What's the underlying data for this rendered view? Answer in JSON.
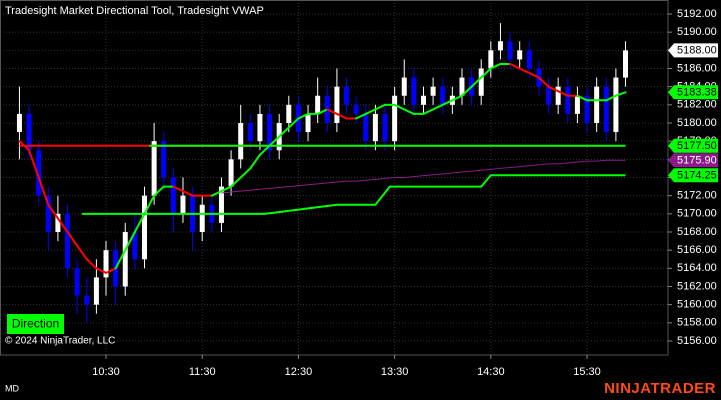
{
  "chart_data": {
    "type": "candlestick",
    "title": "Tradesight Market Directional Tool, Tradesight VWAP",
    "copyright": "© 2024 NinjaTrader, LLC",
    "indicator_label": "Direction",
    "instrument_label": "MD",
    "logo": "NINJATRADER",
    "x": [
      9.6,
      9.7,
      9.8,
      9.9,
      10.0,
      10.1,
      10.2,
      10.3,
      10.4,
      10.5,
      10.6,
      10.7,
      10.8,
      10.9,
      11.0,
      11.1,
      11.2,
      11.3,
      11.4,
      11.5,
      11.6,
      11.7,
      11.8,
      11.9,
      12.0,
      12.1,
      12.2,
      12.3,
      12.4,
      12.5,
      12.6,
      12.7,
      12.8,
      12.9,
      13.0,
      13.1,
      13.2,
      13.3,
      13.4,
      13.5,
      13.6,
      13.7,
      13.8,
      13.9,
      14.0,
      14.1,
      14.2,
      14.3,
      14.4,
      14.5,
      14.6,
      14.7,
      14.8,
      14.9,
      15.0,
      15.1,
      15.2,
      15.3,
      15.4,
      15.5,
      15.6,
      15.7,
      15.8,
      15.9
    ],
    "open": [
      5179,
      5181,
      5177,
      5172,
      5168,
      5170,
      5164,
      5161,
      5160,
      5163,
      5166,
      5162,
      5168,
      5165,
      5172,
      5178,
      5174,
      5170,
      5172,
      5168,
      5171,
      5169,
      5173,
      5176,
      5180,
      5178,
      5181,
      5177,
      5180,
      5182,
      5179,
      5181,
      5183,
      5180,
      5184,
      5182,
      5181,
      5178,
      5181,
      5178,
      5183,
      5185,
      5182,
      5183,
      5184,
      5182,
      5183,
      5185,
      5183,
      5186,
      5188,
      5189,
      5187,
      5188,
      5186,
      5184,
      5182,
      5184,
      5181,
      5183,
      5180,
      5184,
      5179,
      5185
    ],
    "high": [
      5184,
      5182,
      5178,
      5173,
      5172,
      5171,
      5165,
      5163,
      5165,
      5167,
      5167,
      5169,
      5170,
      5173,
      5180,
      5179,
      5175,
      5174,
      5173,
      5172,
      5172,
      5174,
      5177,
      5182,
      5181,
      5182,
      5182,
      5181,
      5183,
      5183,
      5182,
      5185,
      5184,
      5186,
      5185,
      5183,
      5182,
      5182,
      5182,
      5184,
      5187,
      5186,
      5184,
      5185,
      5185,
      5184,
      5186,
      5186,
      5187,
      5189,
      5191,
      5190,
      5189,
      5189,
      5187,
      5185,
      5185,
      5185,
      5184,
      5184,
      5185,
      5185,
      5186,
      5189
    ],
    "low": [
      5176,
      5176,
      5171,
      5166,
      5167,
      5163,
      5159,
      5158,
      5159,
      5161,
      5160,
      5161,
      5164,
      5164,
      5171,
      5173,
      5168,
      5169,
      5166,
      5167,
      5168,
      5168,
      5172,
      5175,
      5177,
      5177,
      5176,
      5176,
      5179,
      5178,
      5178,
      5180,
      5179,
      5179,
      5181,
      5180,
      5177,
      5177,
      5177,
      5177,
      5182,
      5181,
      5181,
      5182,
      5181,
      5181,
      5182,
      5182,
      5182,
      5185,
      5187,
      5186,
      5186,
      5185,
      5183,
      5181,
      5181,
      5180,
      5180,
      5179,
      5179,
      5178,
      5178,
      5184
    ],
    "close": [
      5181,
      5177,
      5172,
      5168,
      5170,
      5164,
      5161,
      5160,
      5163,
      5166,
      5162,
      5168,
      5165,
      5172,
      5178,
      5174,
      5170,
      5172,
      5168,
      5171,
      5169,
      5173,
      5176,
      5180,
      5178,
      5181,
      5177,
      5180,
      5182,
      5179,
      5181,
      5183,
      5180,
      5184,
      5182,
      5181,
      5178,
      5181,
      5178,
      5183,
      5185,
      5182,
      5183,
      5184,
      5182,
      5183,
      5185,
      5183,
      5186,
      5188,
      5189,
      5187,
      5188,
      5186,
      5184,
      5182,
      5184,
      5181,
      5183,
      5180,
      5184,
      5179,
      5185,
      5188
    ],
    "up_color": "#ffffff",
    "down_color": "#0000ff",
    "lines": [
      {
        "color": "#ff0000",
        "width": 2,
        "x": [
          9.6,
          12.25
        ],
        "values": [
          5177.5,
          5177.5
        ]
      },
      {
        "color": "#00ff00",
        "width": 2,
        "x": [
          10.95,
          15.9
        ],
        "values": [
          5177.5,
          5177.5
        ]
      },
      {
        "color": "#00ff00",
        "width": 2,
        "x": [
          10.25,
          12.15,
          12.9,
          13.3,
          13.45,
          14.4,
          14.5,
          15.9
        ],
        "values": [
          5170,
          5170,
          5171,
          5171,
          5173,
          5173,
          5174.25,
          5174.25
        ]
      },
      {
        "color": "#8b1a8b",
        "width": 1,
        "values": [
          null,
          null,
          null,
          null,
          null,
          null,
          null,
          null,
          null,
          null,
          null,
          null,
          null,
          null,
          null,
          null,
          null,
          null,
          null,
          null,
          null,
          5172.3,
          5172.4,
          5172.5,
          5172.6,
          5172.7,
          5172.8,
          5172.9,
          5173,
          5173.1,
          5173.2,
          5173.3,
          5173.4,
          5173.5,
          5173.6,
          5173.6,
          5173.7,
          5173.8,
          5173.9,
          5174,
          5174,
          5174.1,
          5174.2,
          5174.3,
          5174.4,
          5174.5,
          5174.6,
          5174.7,
          5174.8,
          5174.9,
          5175,
          5175.1,
          5175.2,
          5175.3,
          5175.4,
          5175.5,
          5175.5,
          5175.6,
          5175.7,
          5175.8,
          5175.8,
          5175.9,
          5175.9,
          5175.9
        ]
      },
      {
        "width": 2,
        "values": [
          5178,
          5177,
          5174,
          5171,
          5169.5,
          5168,
          5166.5,
          5165,
          5164,
          5163.5,
          5164,
          5166,
          5168,
          5170,
          5172,
          5173,
          5173,
          5172.5,
          5172,
          5172,
          5172,
          5172.5,
          5173,
          5174,
          5175,
          5176.5,
          5177.5,
          5178.5,
          5179.5,
          5180.5,
          5181,
          5181,
          5181.5,
          5181,
          5180.5,
          5180.5,
          5181,
          5181.5,
          5182,
          5182,
          5181.5,
          5181,
          5181,
          5181.5,
          5182,
          5182.5,
          5183,
          5184,
          5185,
          5186,
          5186.5,
          5186.5,
          5186,
          5185.5,
          5185,
          5184,
          5183.5,
          5183,
          5183,
          5182.5,
          5182.5,
          5182.5,
          5183,
          5183.38
        ],
        "colors": [
          "#ff0000",
          "#ff0000",
          "#ff0000",
          "#ff0000",
          "#ff0000",
          "#ff0000",
          "#ff0000",
          "#ff0000",
          "#ff0000",
          "#ff0000",
          "#ff0000",
          "#00ff00",
          "#00ff00",
          "#00ff00",
          "#00ff00",
          "#00ff00",
          "#00ff00",
          "#ff0000",
          "#ff0000",
          "#ff0000",
          "#ff0000",
          "#00ff00",
          "#00ff00",
          "#00ff00",
          "#00ff00",
          "#00ff00",
          "#00ff00",
          "#00ff00",
          "#00ff00",
          "#00ff00",
          "#00ff00",
          "#00ff00",
          "#00ff00",
          "#ff0000",
          "#ff0000",
          "#ff0000",
          "#00ff00",
          "#00ff00",
          "#00ff00",
          "#00ff00",
          "#00ff00",
          "#00ff00",
          "#00ff00",
          "#00ff00",
          "#00ff00",
          "#00ff00",
          "#00ff00",
          "#00ff00",
          "#00ff00",
          "#00ff00",
          "#00ff00",
          "#00ff00",
          "#ff0000",
          "#ff0000",
          "#ff0000",
          "#ff0000",
          "#ff0000",
          "#ff0000",
          "#ff0000",
          "#00ff00",
          "#00ff00",
          "#00ff00",
          "#00ff00",
          "#00ff00"
        ]
      }
    ],
    "markers": [
      {
        "value": 5188,
        "label": "5188.00",
        "bg": "#ffffff",
        "fg": "#000000"
      },
      {
        "value": 5183.38,
        "label": "5183.38",
        "bg": "#00ff00",
        "fg": "#000000"
      },
      {
        "value": 5177.5,
        "label": "5177.50",
        "bg": "#00ff00",
        "fg": "#000000"
      },
      {
        "value": 5175.9,
        "label": "5175.90",
        "bg": "#8b1a8b",
        "fg": "#ffffff"
      },
      {
        "value": 5174.25,
        "label": "5174.25",
        "bg": "#00ff00",
        "fg": "#000000"
      }
    ],
    "xlim": [
      9.45,
      16.3
    ],
    "xticks": [
      {
        "value": 10.5,
        "label": "10:30"
      },
      {
        "value": 11.5,
        "label": "11:30"
      },
      {
        "value": 12.5,
        "label": "12:30"
      },
      {
        "value": 13.5,
        "label": "13:30"
      },
      {
        "value": 14.5,
        "label": "14:30"
      },
      {
        "value": 15.5,
        "label": "15:30"
      }
    ],
    "ylim": [
      5154.46,
      5193.54
    ],
    "yticks": [
      {
        "value": 5156,
        "label": "5156.00"
      },
      {
        "value": 5158,
        "label": "5158.00"
      },
      {
        "value": 5160,
        "label": "5160.00"
      },
      {
        "value": 5162,
        "label": "5162.00"
      },
      {
        "value": 5164,
        "label": "5164.00"
      },
      {
        "value": 5166,
        "label": "5166.00"
      },
      {
        "value": 5168,
        "label": "5168.00"
      },
      {
        "value": 5170,
        "label": "5170.00"
      },
      {
        "value": 5172,
        "label": "5172.00"
      },
      {
        "value": 5174,
        "label": "5174.00"
      },
      {
        "value": 5176,
        "label": "5176.00"
      },
      {
        "value": 5178,
        "label": "5178.00"
      },
      {
        "value": 5180,
        "label": "5180.00"
      },
      {
        "value": 5182,
        "label": "5182.00"
      },
      {
        "value": 5184,
        "label": "5184.00"
      },
      {
        "value": 5186,
        "label": "5186.00"
      },
      {
        "value": 5188,
        "label": "5188.00"
      },
      {
        "value": 5190,
        "label": "5190.00"
      },
      {
        "value": 5192,
        "label": "5192.00"
      }
    ],
    "grid": true
  }
}
